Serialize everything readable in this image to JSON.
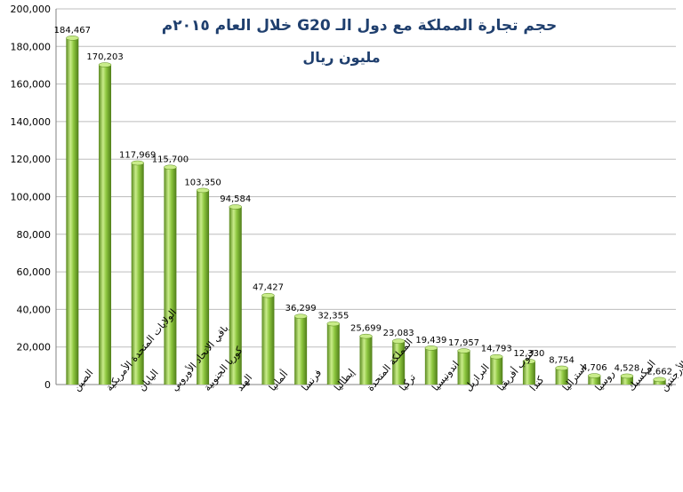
{
  "chart_data": {
    "type": "bar",
    "title": "حجم تجارة المملكة مع دول الـ G20 خلال العام ٢٠١٥م",
    "subtitle": "مليون ريال",
    "xlabel": "",
    "ylabel": "",
    "ylim": [
      0,
      200000
    ],
    "yticks": [
      "0",
      "20,000",
      "40,000",
      "60,000",
      "80,000",
      "100,000",
      "120,000",
      "140,000",
      "160,000",
      "180,000",
      "200,000"
    ],
    "yticks_values": [
      0,
      20000,
      40000,
      60000,
      80000,
      100000,
      120000,
      140000,
      160000,
      180000,
      200000
    ],
    "grid": true,
    "legend": "none",
    "bar_color": "#8dc63f",
    "bar_color_dark": "#5a8a1e",
    "bar_color_light": "#c9ec8a",
    "categories": [
      "الصين",
      "الولايات المتحدة الأمريكية",
      "اليابان",
      "باقي الاتحاد الأوروبي",
      "كوريا الجنوبية",
      "الهند",
      "ألمانيا",
      "فرنسا",
      "إيطاليا",
      "المملكة المتحدة",
      "تركيا",
      "اندونيسيا",
      "البرازيل",
      "جنوب أفريقيا",
      "كندا",
      "استراليا",
      "روسيا",
      "المكسيك",
      "الأرجنتين"
    ],
    "values": [
      184467,
      170203,
      117969,
      115700,
      103350,
      94584,
      47427,
      36299,
      32355,
      25699,
      23083,
      19439,
      17957,
      14793,
      12330,
      8754,
      4706,
      4528,
      2662
    ],
    "data_labels": [
      "184,467",
      "170,203",
      "117,969",
      "115,700",
      "103,350",
      "94,584",
      "47,427",
      "36,299",
      "32,355",
      "25,699",
      "23,083",
      "19,439",
      "17,957",
      "14,793",
      "12,330",
      "8,754",
      "4,706",
      "4,528",
      "2,662"
    ]
  }
}
